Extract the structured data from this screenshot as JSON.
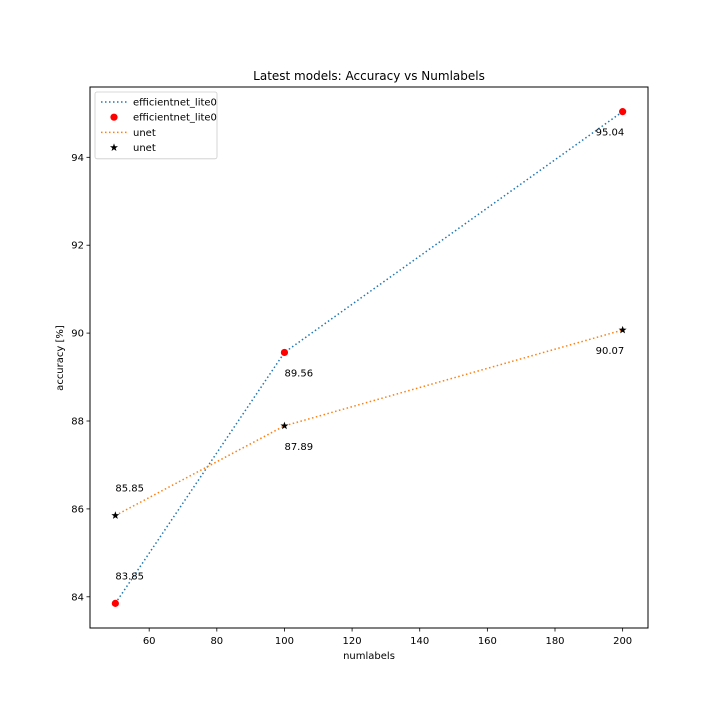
{
  "chart_data": {
    "type": "line",
    "title": "Latest models: Accuracy vs Numlabels",
    "xlabel": "numlabels",
    "ylabel": "accuracy [%]",
    "xlim": [
      42.5,
      207.5
    ],
    "ylim": [
      83.29,
      95.6
    ],
    "xticks": [
      60,
      80,
      100,
      120,
      140,
      160,
      180,
      200
    ],
    "yticks": [
      84,
      86,
      88,
      90,
      92,
      94
    ],
    "x": [
      50,
      100,
      200
    ],
    "grid": false,
    "legend_position": "upper-left",
    "series": [
      {
        "name": "efficientnet_lite0",
        "values": [
          83.85,
          89.56,
          95.04
        ],
        "line_color": "#1f77b4",
        "line_style": "dotted",
        "marker_color": "#ff0000",
        "marker": "circle",
        "labels": [
          "83.85",
          "89.56",
          "95.04"
        ]
      },
      {
        "name": "unet",
        "values": [
          85.85,
          87.89,
          90.07
        ],
        "line_color": "#ff7f0e",
        "line_style": "dotted",
        "marker_color": "#000000",
        "marker": "star",
        "labels": [
          "85.85",
          "87.89",
          "90.07"
        ]
      }
    ],
    "legend": [
      {
        "label": "efficientnet_lite0",
        "kind": "line",
        "series": 0
      },
      {
        "label": "efficientnet_lite0",
        "kind": "marker",
        "series": 0
      },
      {
        "label": "unet",
        "kind": "line",
        "series": 1
      },
      {
        "label": "unet",
        "kind": "marker",
        "series": 1
      }
    ]
  }
}
